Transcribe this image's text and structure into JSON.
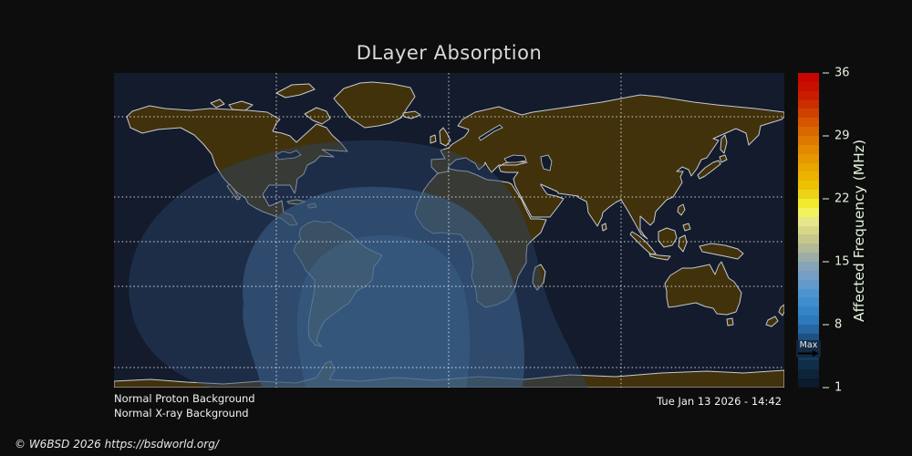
{
  "title": "DLayer Absorption",
  "status": {
    "line1": "Normal Proton Background",
    "line2": "Normal X-ray Background"
  },
  "timestamp": "Tue Jan 13 2026 - 14:42",
  "copyright": "© W6BSD 2026 https://bsdworld.org/",
  "colorbar": {
    "label": "Affected Frequency (MHz)",
    "min": 1,
    "max": 36,
    "ticks": [
      "36",
      "29",
      "22",
      "15",
      "8",
      "1"
    ],
    "max_marker": {
      "label": "Max",
      "value": 5.4
    },
    "stops": [
      {
        "v": 36,
        "c": "#c80000"
      },
      {
        "v": 34,
        "c": "#c81400"
      },
      {
        "v": 32,
        "c": "#cd3700"
      },
      {
        "v": 30,
        "c": "#d75f00"
      },
      {
        "v": 28,
        "c": "#e08200"
      },
      {
        "v": 26,
        "c": "#e89f00"
      },
      {
        "v": 24,
        "c": "#edb900"
      },
      {
        "v": 23,
        "c": "#ecc800"
      },
      {
        "v": 22,
        "c": "#eede30"
      },
      {
        "v": 21,
        "c": "#f6f62c"
      },
      {
        "v": 20,
        "c": "#eeee8e"
      },
      {
        "v": 18,
        "c": "#cfcf84"
      },
      {
        "v": 16,
        "c": "#a8b49b"
      },
      {
        "v": 15,
        "c": "#8fa6b4"
      },
      {
        "v": 13,
        "c": "#6b9dc8"
      },
      {
        "v": 11,
        "c": "#4691d2"
      },
      {
        "v": 9,
        "c": "#2f7fc4"
      },
      {
        "v": 8,
        "c": "#2b73b4"
      },
      {
        "v": 7,
        "c": "#20588e"
      },
      {
        "v": 6,
        "c": "#1a4a78"
      },
      {
        "v": 5,
        "c": "#164064"
      },
      {
        "v": 4,
        "c": "#123350"
      },
      {
        "v": 3,
        "c": "#0f2940"
      },
      {
        "v": 2,
        "c": "#0c1e31"
      },
      {
        "v": 1,
        "c": "#0a1626"
      }
    ]
  },
  "map": {
    "colors": {
      "background": "#0d0d0d",
      "night_ocean": "#131b2c",
      "day_outer": "#2c4468",
      "day_inner": "#3a6088",
      "day_core": "#5586b8",
      "land": "#41320c",
      "coastline": "#c6cad0",
      "lake": "#131b2c",
      "grid": "#ffffff"
    },
    "gridlines": {
      "vertical_x": [
        178,
        367,
        556
      ],
      "horizontal_y": [
        48,
        136,
        185,
        234,
        323
      ]
    }
  }
}
